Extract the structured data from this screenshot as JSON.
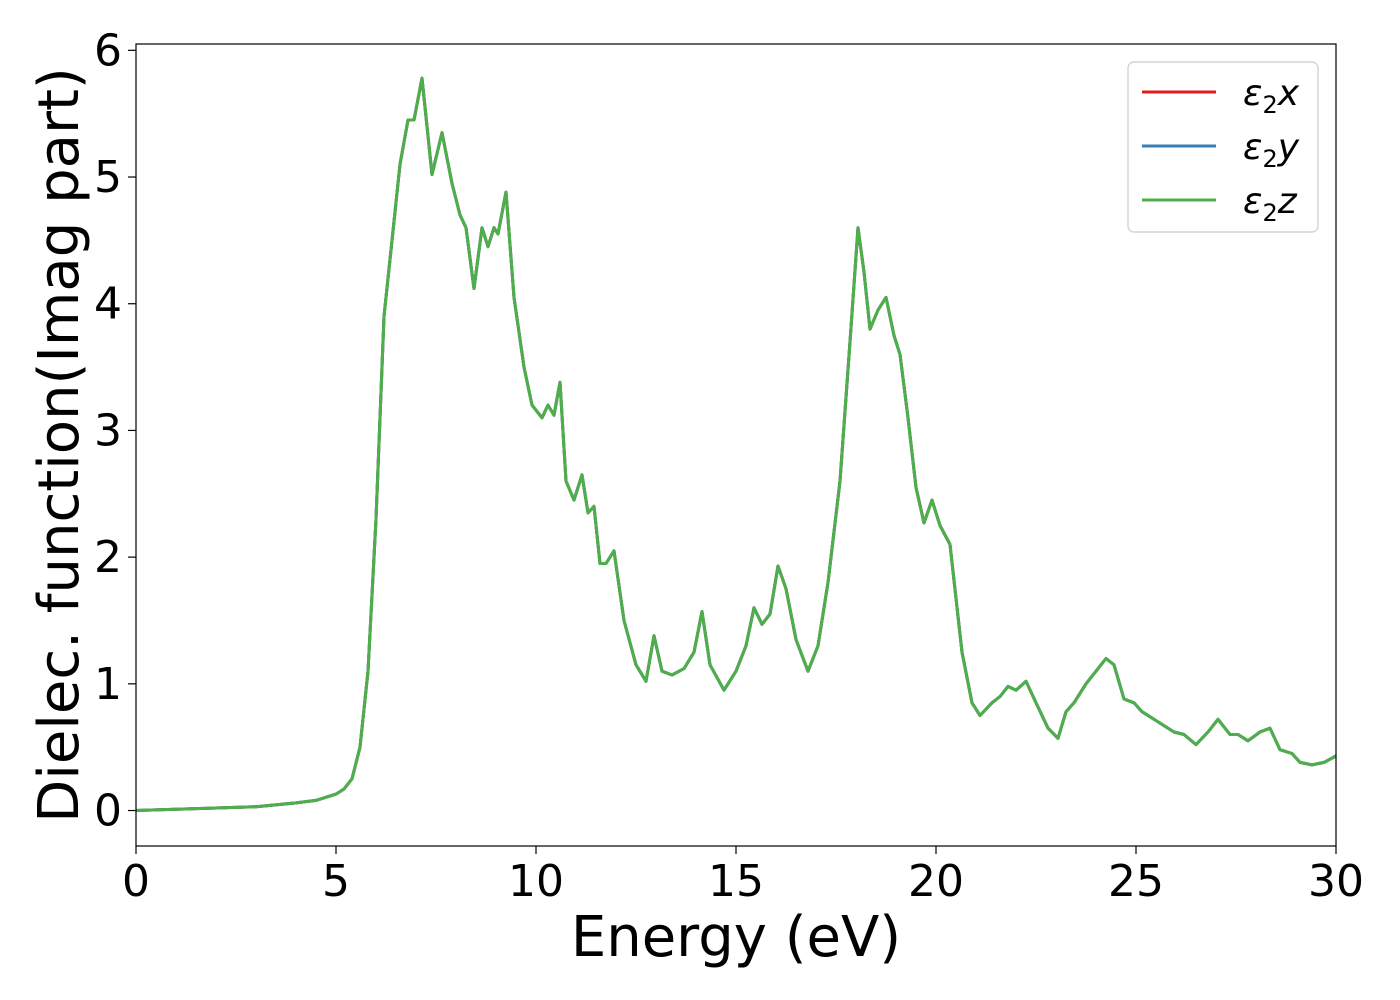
{
  "chart_data": {
    "type": "line",
    "title": "",
    "xlabel": "Energy (eV)",
    "ylabel": "Dielec. function(Imag part)",
    "xlim": [
      0,
      30
    ],
    "ylim": [
      -0.28,
      6.05
    ],
    "xticks": [
      0,
      5,
      10,
      15,
      20,
      25,
      30
    ],
    "xtick_labels": [
      "0",
      "5",
      "10",
      "15",
      "20",
      "25",
      "30"
    ],
    "yticks": [
      0,
      1,
      2,
      3,
      4,
      5,
      6
    ],
    "ytick_labels": [
      "0",
      "1",
      "2",
      "3",
      "4",
      "5",
      "6"
    ],
    "grid": false,
    "legend_position": "top-right",
    "series": [
      {
        "name": "ε2x",
        "name_base": "ε",
        "name_sub": "2",
        "name_var": "x",
        "color": "#e41a1c",
        "x": [
          0,
          1,
          2,
          3,
          4,
          4.5,
          5,
          5.2,
          5.4,
          5.6,
          5.8,
          6.0,
          6.2,
          6.4,
          6.6,
          6.8,
          6.95,
          7.15,
          7.4,
          7.65,
          7.9,
          8.1,
          8.25,
          8.45,
          8.65,
          8.8,
          8.95,
          9.05,
          9.25,
          9.45,
          9.7,
          9.9,
          10.15,
          10.3,
          10.45,
          10.6,
          10.75,
          10.95,
          11.15,
          11.3,
          11.45,
          11.6,
          11.75,
          11.95,
          12.2,
          12.5,
          12.75,
          12.95,
          13.15,
          13.4,
          13.7,
          13.95,
          14.15,
          14.35,
          14.7,
          15.0,
          15.25,
          15.45,
          15.65,
          15.85,
          16.05,
          16.25,
          16.5,
          16.8,
          17.05,
          17.3,
          17.6,
          17.85,
          18.05,
          18.2,
          18.35,
          18.55,
          18.75,
          18.95,
          19.1,
          19.3,
          19.5,
          19.7,
          19.9,
          20.1,
          20.35,
          20.65,
          20.9,
          21.1,
          21.4,
          21.6,
          21.8,
          22.0,
          22.25,
          22.5,
          22.8,
          23.05,
          23.25,
          23.45,
          23.75,
          24.0,
          24.25,
          24.45,
          24.7,
          24.95,
          25.15,
          25.4,
          25.65,
          25.95,
          26.2,
          26.5,
          26.8,
          27.05,
          27.35,
          27.55,
          27.8,
          28.1,
          28.35,
          28.6,
          28.9,
          29.1,
          29.4,
          29.7,
          30.0
        ],
        "y": [
          0.0,
          0.01,
          0.02,
          0.03,
          0.06,
          0.08,
          0.13,
          0.17,
          0.25,
          0.5,
          1.1,
          2.3,
          3.9,
          4.5,
          5.1,
          5.45,
          5.45,
          5.78,
          5.02,
          5.35,
          4.95,
          4.7,
          4.6,
          4.12,
          4.6,
          4.45,
          4.6,
          4.55,
          4.88,
          4.05,
          3.5,
          3.2,
          3.1,
          3.2,
          3.12,
          3.38,
          2.6,
          2.45,
          2.65,
          2.35,
          2.4,
          1.95,
          1.95,
          2.05,
          1.5,
          1.15,
          1.02,
          1.38,
          1.1,
          1.07,
          1.12,
          1.25,
          1.57,
          1.15,
          0.95,
          1.1,
          1.3,
          1.6,
          1.47,
          1.55,
          1.93,
          1.75,
          1.35,
          1.1,
          1.3,
          1.8,
          2.6,
          3.7,
          4.6,
          4.25,
          3.8,
          3.95,
          4.05,
          3.75,
          3.6,
          3.1,
          2.55,
          2.27,
          2.45,
          2.25,
          2.1,
          1.25,
          0.85,
          0.75,
          0.85,
          0.9,
          0.98,
          0.95,
          1.02,
          0.85,
          0.65,
          0.57,
          0.78,
          0.85,
          1.0,
          1.1,
          1.2,
          1.15,
          0.88,
          0.85,
          0.78,
          0.73,
          0.68,
          0.62,
          0.6,
          0.52,
          0.62,
          0.72,
          0.6,
          0.6,
          0.55,
          0.62,
          0.65,
          0.48,
          0.45,
          0.38,
          0.36,
          0.38,
          0.43
        ]
      },
      {
        "name": "ε2y",
        "name_base": "ε",
        "name_sub": "2",
        "name_var": "y",
        "color": "#377eb8",
        "x": [
          0,
          1,
          2,
          3,
          4,
          4.5,
          5,
          5.2,
          5.4,
          5.6,
          5.8,
          6.0,
          6.2,
          6.4,
          6.6,
          6.8,
          6.95,
          7.15,
          7.4,
          7.65,
          7.9,
          8.1,
          8.25,
          8.45,
          8.65,
          8.8,
          8.95,
          9.05,
          9.25,
          9.45,
          9.7,
          9.9,
          10.15,
          10.3,
          10.45,
          10.6,
          10.75,
          10.95,
          11.15,
          11.3,
          11.45,
          11.6,
          11.75,
          11.95,
          12.2,
          12.5,
          12.75,
          12.95,
          13.15,
          13.4,
          13.7,
          13.95,
          14.15,
          14.35,
          14.7,
          15.0,
          15.25,
          15.45,
          15.65,
          15.85,
          16.05,
          16.25,
          16.5,
          16.8,
          17.05,
          17.3,
          17.6,
          17.85,
          18.05,
          18.2,
          18.35,
          18.55,
          18.75,
          18.95,
          19.1,
          19.3,
          19.5,
          19.7,
          19.9,
          20.1,
          20.35,
          20.65,
          20.9,
          21.1,
          21.4,
          21.6,
          21.8,
          22.0,
          22.25,
          22.5,
          22.8,
          23.05,
          23.25,
          23.45,
          23.75,
          24.0,
          24.25,
          24.45,
          24.7,
          24.95,
          25.15,
          25.4,
          25.65,
          25.95,
          26.2,
          26.5,
          26.8,
          27.05,
          27.35,
          27.55,
          27.8,
          28.1,
          28.35,
          28.6,
          28.9,
          29.1,
          29.4,
          29.7,
          30.0
        ],
        "y": [
          0.0,
          0.01,
          0.02,
          0.03,
          0.06,
          0.08,
          0.13,
          0.17,
          0.25,
          0.5,
          1.1,
          2.3,
          3.9,
          4.5,
          5.1,
          5.45,
          5.45,
          5.78,
          5.02,
          5.35,
          4.95,
          4.7,
          4.6,
          4.12,
          4.6,
          4.45,
          4.6,
          4.55,
          4.88,
          4.05,
          3.5,
          3.2,
          3.1,
          3.2,
          3.12,
          3.38,
          2.6,
          2.45,
          2.65,
          2.35,
          2.4,
          1.95,
          1.95,
          2.05,
          1.5,
          1.15,
          1.02,
          1.38,
          1.1,
          1.07,
          1.12,
          1.25,
          1.57,
          1.15,
          0.95,
          1.1,
          1.3,
          1.6,
          1.47,
          1.55,
          1.93,
          1.75,
          1.35,
          1.1,
          1.3,
          1.8,
          2.6,
          3.7,
          4.6,
          4.25,
          3.8,
          3.95,
          4.05,
          3.75,
          3.6,
          3.1,
          2.55,
          2.27,
          2.45,
          2.25,
          2.1,
          1.25,
          0.85,
          0.75,
          0.85,
          0.9,
          0.98,
          0.95,
          1.02,
          0.85,
          0.65,
          0.57,
          0.78,
          0.85,
          1.0,
          1.1,
          1.2,
          1.15,
          0.88,
          0.85,
          0.78,
          0.73,
          0.68,
          0.62,
          0.6,
          0.52,
          0.62,
          0.72,
          0.6,
          0.6,
          0.55,
          0.62,
          0.65,
          0.48,
          0.45,
          0.38,
          0.36,
          0.38,
          0.43
        ]
      },
      {
        "name": "ε2z",
        "name_base": "ε",
        "name_sub": "2",
        "name_var": "z",
        "color": "#4daf4a",
        "x": [
          0,
          1,
          2,
          3,
          4,
          4.5,
          5,
          5.2,
          5.4,
          5.6,
          5.8,
          6.0,
          6.2,
          6.4,
          6.6,
          6.8,
          6.95,
          7.15,
          7.4,
          7.65,
          7.9,
          8.1,
          8.25,
          8.45,
          8.65,
          8.8,
          8.95,
          9.05,
          9.25,
          9.45,
          9.7,
          9.9,
          10.15,
          10.3,
          10.45,
          10.6,
          10.75,
          10.95,
          11.15,
          11.3,
          11.45,
          11.6,
          11.75,
          11.95,
          12.2,
          12.5,
          12.75,
          12.95,
          13.15,
          13.4,
          13.7,
          13.95,
          14.15,
          14.35,
          14.7,
          15.0,
          15.25,
          15.45,
          15.65,
          15.85,
          16.05,
          16.25,
          16.5,
          16.8,
          17.05,
          17.3,
          17.6,
          17.85,
          18.05,
          18.2,
          18.35,
          18.55,
          18.75,
          18.95,
          19.1,
          19.3,
          19.5,
          19.7,
          19.9,
          20.1,
          20.35,
          20.65,
          20.9,
          21.1,
          21.4,
          21.6,
          21.8,
          22.0,
          22.25,
          22.5,
          22.8,
          23.05,
          23.25,
          23.45,
          23.75,
          24.0,
          24.25,
          24.45,
          24.7,
          24.95,
          25.15,
          25.4,
          25.65,
          25.95,
          26.2,
          26.5,
          26.8,
          27.05,
          27.35,
          27.55,
          27.8,
          28.1,
          28.35,
          28.6,
          28.9,
          29.1,
          29.4,
          29.7,
          30.0
        ],
        "y": [
          0.0,
          0.01,
          0.02,
          0.03,
          0.06,
          0.08,
          0.13,
          0.17,
          0.25,
          0.5,
          1.1,
          2.3,
          3.9,
          4.5,
          5.1,
          5.45,
          5.45,
          5.78,
          5.02,
          5.35,
          4.95,
          4.7,
          4.6,
          4.12,
          4.6,
          4.45,
          4.6,
          4.55,
          4.88,
          4.05,
          3.5,
          3.2,
          3.1,
          3.2,
          3.12,
          3.38,
          2.6,
          2.45,
          2.65,
          2.35,
          2.4,
          1.95,
          1.95,
          2.05,
          1.5,
          1.15,
          1.02,
          1.38,
          1.1,
          1.07,
          1.12,
          1.25,
          1.57,
          1.15,
          0.95,
          1.1,
          1.3,
          1.6,
          1.47,
          1.55,
          1.93,
          1.75,
          1.35,
          1.1,
          1.3,
          1.8,
          2.6,
          3.7,
          4.6,
          4.25,
          3.8,
          3.95,
          4.05,
          3.75,
          3.6,
          3.1,
          2.55,
          2.27,
          2.45,
          2.25,
          2.1,
          1.25,
          0.85,
          0.75,
          0.85,
          0.9,
          0.98,
          0.95,
          1.02,
          0.85,
          0.65,
          0.57,
          0.78,
          0.85,
          1.0,
          1.1,
          1.2,
          1.15,
          0.88,
          0.85,
          0.78,
          0.73,
          0.68,
          0.62,
          0.6,
          0.52,
          0.62,
          0.72,
          0.6,
          0.6,
          0.55,
          0.62,
          0.65,
          0.48,
          0.45,
          0.38,
          0.36,
          0.38,
          0.43
        ]
      }
    ]
  }
}
